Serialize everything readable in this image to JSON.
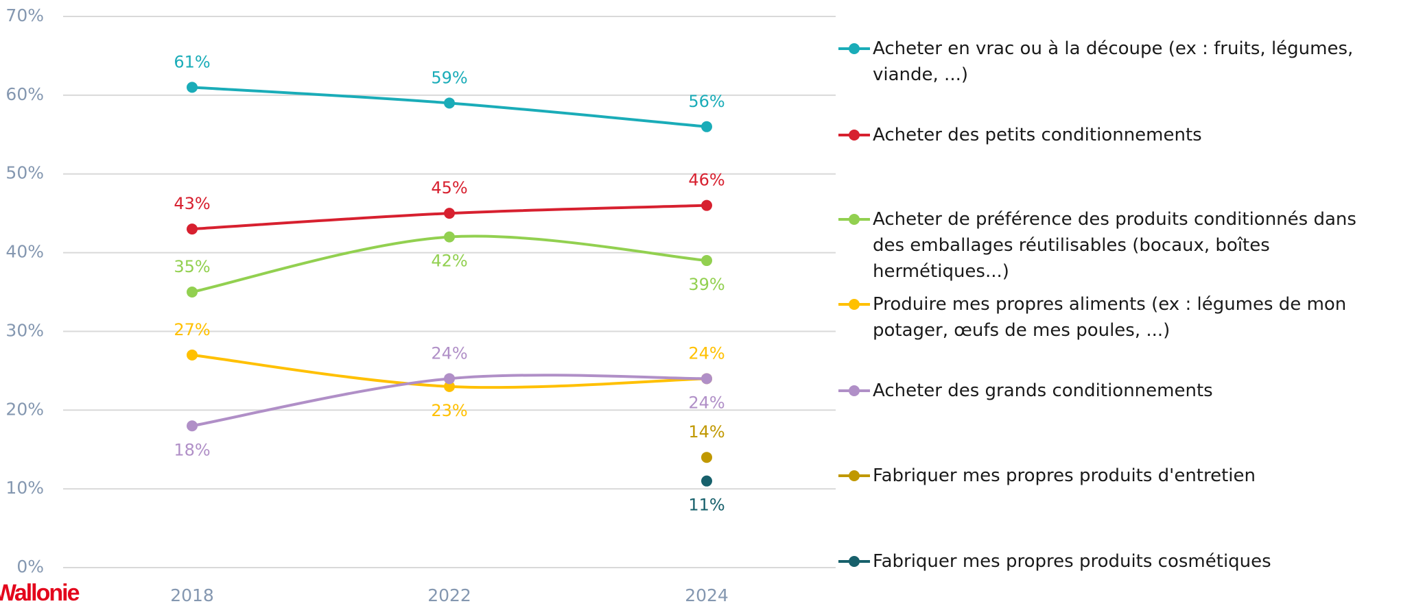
{
  "chart_data": {
    "type": "line",
    "categories": [
      "2018",
      "2022",
      "2024"
    ],
    "ylim": [
      0,
      70
    ],
    "yticks": [
      {
        "value": 0,
        "label": "0%"
      },
      {
        "value": 10,
        "label": "10%"
      },
      {
        "value": 20,
        "label": "20%"
      },
      {
        "value": 30,
        "label": "30%"
      },
      {
        "value": 40,
        "label": "40%"
      },
      {
        "value": 50,
        "label": "50%"
      },
      {
        "value": 60,
        "label": "60%"
      },
      {
        "value": 70,
        "label": "70%"
      }
    ],
    "grid": true,
    "legend": "right",
    "smooth": true,
    "series": [
      {
        "name": "Acheter en vrac ou à la découpe (ex : fruits, légumes, viande, ...)",
        "color": "#1aacb8",
        "values": [
          61,
          59,
          56
        ],
        "value_labels": [
          "61%",
          "59%",
          "56%"
        ]
      },
      {
        "name": "Acheter des petits conditionnements",
        "color": "#d7202f",
        "values": [
          43,
          45,
          46
        ],
        "value_labels": [
          "43%",
          "45%",
          "46%"
        ]
      },
      {
        "name": "Acheter de préférence des produits conditionnés dans des emballages réutilisables (bocaux, boîtes hermétiques...)",
        "color": "#92d050",
        "values": [
          35,
          42,
          39
        ],
        "value_labels": [
          "35%",
          "42%",
          "39%"
        ]
      },
      {
        "name": "Produire mes propres aliments (ex : légumes de mon potager, œufs de mes poules, ...)",
        "color": "#ffc000",
        "values": [
          27,
          23,
          24
        ],
        "value_labels": [
          "27%",
          "23%",
          "24%"
        ]
      },
      {
        "name": "Acheter des grands conditionnements",
        "color": "#b08fc7",
        "values": [
          18,
          24,
          24
        ],
        "value_labels": [
          "18%",
          "24%",
          "24%"
        ]
      },
      {
        "name": "Fabriquer mes propres produits d'entretien",
        "color": "#c09800",
        "values": [
          null,
          null,
          14
        ],
        "value_labels": [
          null,
          null,
          "14%"
        ]
      },
      {
        "name": "Fabriquer mes propres produits cosmétiques",
        "color": "#17606b",
        "values": [
          null,
          null,
          11
        ],
        "value_labels": [
          null,
          null,
          "11%"
        ]
      }
    ]
  },
  "logo": "Wallonie"
}
